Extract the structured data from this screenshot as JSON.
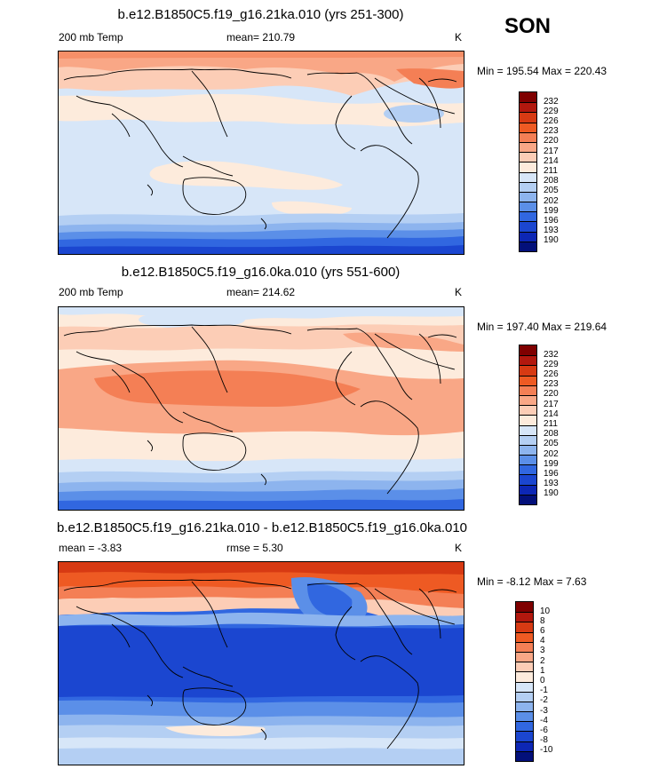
{
  "season": "SON",
  "panels": [
    {
      "title": "b.e12.B1850C5.f19_g16.21ka.010 (yrs 251-300)",
      "left_label": "200 mb Temp",
      "center_label": "mean= 210.79",
      "right_label": "K",
      "minmax": "Min = 195.54 Max = 220.43",
      "colorbar_labels": [
        "232",
        "229",
        "226",
        "223",
        "220",
        "217",
        "214",
        "211",
        "208",
        "205",
        "202",
        "199",
        "196",
        "193",
        "190"
      ]
    },
    {
      "title": "b.e12.B1850C5.f19_g16.0ka.010 (yrs 551-600)",
      "left_label": "200 mb Temp",
      "center_label": "mean= 214.62",
      "right_label": "K",
      "minmax": "Min = 197.40 Max = 219.64",
      "colorbar_labels": [
        "232",
        "229",
        "226",
        "223",
        "220",
        "217",
        "214",
        "211",
        "208",
        "205",
        "202",
        "199",
        "196",
        "193",
        "190"
      ]
    },
    {
      "title": "b.e12.B1850C5.f19_g16.21ka.010 - b.e12.B1850C5.f19_g16.0ka.010",
      "left_label": "mean =  -3.83",
      "center_label": "rmse =   5.30",
      "right_label": "K",
      "minmax": "Min =  -8.12 Max =   7.63",
      "colorbar_labels": [
        "10",
        "8",
        "6",
        "4",
        "3",
        "2",
        "1",
        "0",
        "-1",
        "-2",
        "-3",
        "-4",
        "-6",
        "-8",
        "-10"
      ]
    }
  ],
  "colors": {
    "scale_abs": [
      "#7f0000",
      "#b2180e",
      "#d73a13",
      "#ee5a23",
      "#f47f55",
      "#f9a786",
      "#fccdb6",
      "#fdebdc",
      "#d7e6f8",
      "#b4cff3",
      "#8db4ee",
      "#5b8fe8",
      "#3167e0",
      "#1b46d0",
      "#0d27b5",
      "#03107a"
    ],
    "scale_diff": [
      "#7f0000",
      "#b2180e",
      "#d73a13",
      "#ee5a23",
      "#f47f55",
      "#f9a786",
      "#fccdb6",
      "#fdebdc",
      "#d7e6f8",
      "#b4cff3",
      "#8db4ee",
      "#5b8fe8",
      "#3167e0",
      "#1b46d0",
      "#0d27b5",
      "#03107a"
    ]
  }
}
